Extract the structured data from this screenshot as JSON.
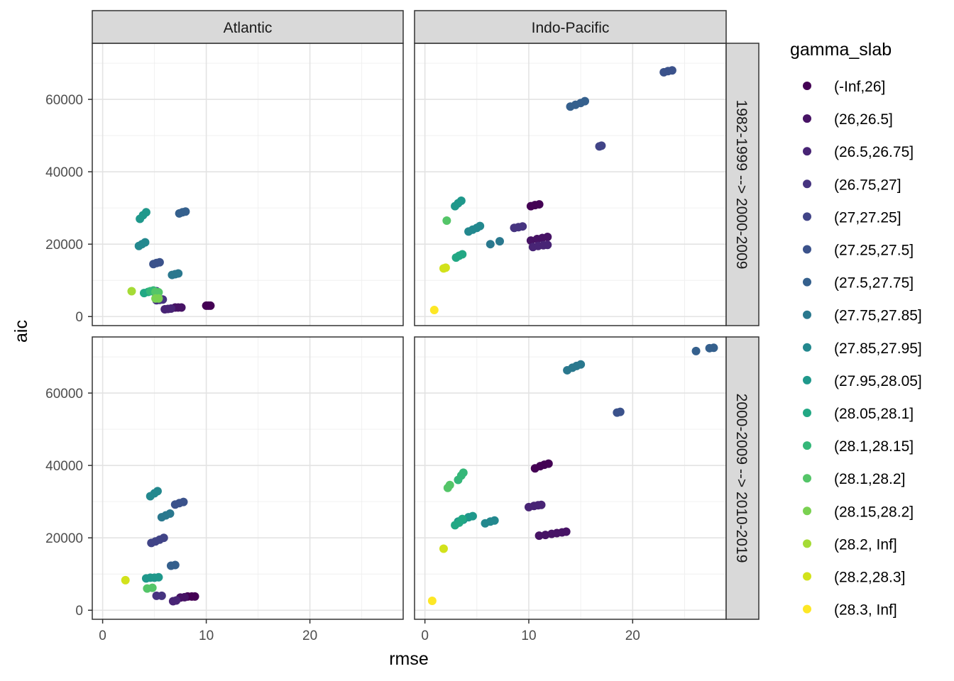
{
  "chart_data": {
    "type": "scatter",
    "xlabel": "rmse",
    "ylabel": "aic",
    "xlim": [
      -1,
      29
    ],
    "ylim": [
      -2500,
      75500
    ],
    "x_ticks": [
      0,
      10,
      20
    ],
    "y_ticks": [
      0,
      20000,
      40000,
      60000
    ],
    "grid": true,
    "legend_position": "right",
    "legend_title": "gamma_slab",
    "columns": [
      "Atlantic",
      "Indo-Pacific"
    ],
    "rows": [
      "1982-1999 --> 2000-2009",
      "2000-2009 --> 2010-2019"
    ],
    "series": [
      {
        "name": "(-Inf,26]",
        "color": "#440154"
      },
      {
        "name": "(26,26.5]",
        "color": "#471365"
      },
      {
        "name": "(26.5,26.75]",
        "color": "#482475"
      },
      {
        "name": "(26.75,27]",
        "color": "#463480"
      },
      {
        "name": "(27,27.25]",
        "color": "#414487"
      },
      {
        "name": "(27.25,27.5]",
        "color": "#3B528B"
      },
      {
        "name": "(27.5,27.75]",
        "color": "#35608D"
      },
      {
        "name": "(27.75,27.85]",
        "color": "#2A788E"
      },
      {
        "name": "(27.85,27.95]",
        "color": "#23888E"
      },
      {
        "name": "(27.95,28.05]",
        "color": "#1F988B"
      },
      {
        "name": "(28.05,28.1]",
        "color": "#22A884"
      },
      {
        "name": "(28.1,28.15]",
        "color": "#35B779"
      },
      {
        "name": "(28.1,28.2]",
        "color": "#54C568"
      },
      {
        "name": "(28.15,28.2]",
        "color": "#7AD151"
      },
      {
        "name": "(28.2, Inf]",
        "color": "#A5DB36"
      },
      {
        "name": "(28.2,28.3]",
        "color": "#D2E21B"
      },
      {
        "name": "(28.3, Inf]",
        "color": "#FDE725"
      }
    ],
    "panels": [
      {
        "column": 0,
        "row": 0,
        "points": [
          [
            0,
            10.0,
            3000
          ],
          [
            0,
            10.2,
            3000
          ],
          [
            0,
            10.4,
            3000
          ],
          [
            1,
            7.0,
            2500
          ],
          [
            1,
            7.3,
            2500
          ],
          [
            1,
            7.6,
            2500
          ],
          [
            2,
            6.0,
            2000
          ],
          [
            2,
            6.3,
            2100
          ],
          [
            2,
            6.6,
            2200
          ],
          [
            3,
            5.2,
            4500
          ],
          [
            3,
            5.5,
            4600
          ],
          [
            3,
            5.8,
            4700
          ],
          [
            4,
            5.0,
            6800
          ],
          [
            4,
            5.2,
            7000
          ],
          [
            5,
            4.9,
            14500
          ],
          [
            5,
            5.2,
            14800
          ],
          [
            5,
            5.5,
            15000
          ],
          [
            6,
            7.4,
            28500
          ],
          [
            6,
            7.7,
            28800
          ],
          [
            6,
            8.0,
            29000
          ],
          [
            7,
            6.7,
            11500
          ],
          [
            7,
            7.0,
            11700
          ],
          [
            7,
            7.3,
            11900
          ],
          [
            8,
            3.5,
            19500
          ],
          [
            8,
            3.8,
            20000
          ],
          [
            8,
            4.1,
            20500
          ],
          [
            9,
            3.6,
            27000
          ],
          [
            9,
            3.9,
            28000
          ],
          [
            9,
            4.2,
            28800
          ],
          [
            10,
            4.0,
            6500
          ],
          [
            10,
            4.4,
            6800
          ],
          [
            11,
            4.6,
            7000
          ],
          [
            11,
            4.9,
            7200
          ],
          [
            12,
            5.1,
            6800
          ],
          [
            12,
            5.4,
            6700
          ],
          [
            13,
            5.1,
            5000
          ],
          [
            13,
            5.4,
            5000
          ],
          [
            14,
            2.8,
            7000
          ]
        ]
      },
      {
        "column": 1,
        "row": 0,
        "points": [
          [
            0,
            10.2,
            30500
          ],
          [
            0,
            10.6,
            30800
          ],
          [
            0,
            11.0,
            31000
          ],
          [
            1,
            10.2,
            21000
          ],
          [
            1,
            10.8,
            21400
          ],
          [
            1,
            11.3,
            21700
          ],
          [
            1,
            11.8,
            22000
          ],
          [
            2,
            10.4,
            19200
          ],
          [
            2,
            10.9,
            19500
          ],
          [
            2,
            11.4,
            19700
          ],
          [
            2,
            11.8,
            19800
          ],
          [
            3,
            8.6,
            24500
          ],
          [
            3,
            9.0,
            24700
          ],
          [
            3,
            9.4,
            24900
          ],
          [
            4,
            16.8,
            47000
          ],
          [
            4,
            17.0,
            47200
          ],
          [
            5,
            23.0,
            67500
          ],
          [
            5,
            23.4,
            67800
          ],
          [
            5,
            23.8,
            68000
          ],
          [
            6,
            14.0,
            58000
          ],
          [
            6,
            14.5,
            58500
          ],
          [
            6,
            15.0,
            59000
          ],
          [
            6,
            15.4,
            59500
          ],
          [
            7,
            6.3,
            20000
          ],
          [
            7,
            7.2,
            20800
          ],
          [
            8,
            4.2,
            23500
          ],
          [
            8,
            4.6,
            24000
          ],
          [
            8,
            5.0,
            24500
          ],
          [
            8,
            5.3,
            25000
          ],
          [
            9,
            2.9,
            30500
          ],
          [
            9,
            3.2,
            31300
          ],
          [
            9,
            3.5,
            32000
          ],
          [
            10,
            3.0,
            16300
          ],
          [
            10,
            3.3,
            16800
          ],
          [
            10,
            3.6,
            17200
          ],
          [
            12,
            2.1,
            26500
          ],
          [
            15,
            1.8,
            13300
          ],
          [
            15,
            2.0,
            13500
          ],
          [
            16,
            0.9,
            1800
          ]
        ]
      },
      {
        "column": 0,
        "row": 1,
        "points": [
          [
            0,
            8.2,
            3800
          ],
          [
            0,
            8.6,
            3800
          ],
          [
            0,
            8.9,
            3800
          ],
          [
            1,
            7.5,
            3500
          ],
          [
            1,
            7.9,
            3600
          ],
          [
            2,
            6.8,
            2500
          ],
          [
            2,
            7.1,
            2700
          ],
          [
            3,
            5.2,
            4000
          ],
          [
            3,
            5.7,
            4000
          ],
          [
            4,
            4.7,
            18600
          ],
          [
            4,
            5.1,
            19000
          ],
          [
            4,
            5.5,
            19500
          ],
          [
            4,
            5.9,
            20000
          ],
          [
            5,
            7.0,
            29200
          ],
          [
            5,
            7.4,
            29600
          ],
          [
            5,
            7.8,
            29900
          ],
          [
            6,
            6.6,
            12300
          ],
          [
            6,
            7.0,
            12500
          ],
          [
            7,
            5.7,
            25700
          ],
          [
            7,
            6.1,
            26200
          ],
          [
            7,
            6.5,
            26700
          ],
          [
            8,
            4.6,
            31500
          ],
          [
            8,
            5.0,
            32300
          ],
          [
            8,
            5.3,
            32900
          ],
          [
            9,
            4.2,
            8800
          ],
          [
            9,
            4.6,
            9000
          ],
          [
            9,
            5.0,
            9000
          ],
          [
            9,
            5.4,
            9100
          ],
          [
            12,
            4.3,
            6000
          ],
          [
            12,
            4.8,
            6200
          ],
          [
            15,
            2.2,
            8300
          ]
        ]
      },
      {
        "column": 1,
        "row": 1,
        "points": [
          [
            0,
            10.6,
            39200
          ],
          [
            0,
            11.1,
            39800
          ],
          [
            0,
            11.5,
            40200
          ],
          [
            0,
            11.9,
            40500
          ],
          [
            1,
            11.0,
            20600
          ],
          [
            1,
            11.6,
            20800
          ],
          [
            1,
            12.2,
            21100
          ],
          [
            1,
            12.7,
            21300
          ],
          [
            1,
            13.2,
            21500
          ],
          [
            1,
            13.6,
            21700
          ],
          [
            2,
            10.0,
            28500
          ],
          [
            2,
            10.5,
            28800
          ],
          [
            2,
            10.9,
            29000
          ],
          [
            2,
            11.2,
            29100
          ],
          [
            5,
            18.5,
            54600
          ],
          [
            5,
            18.8,
            54800
          ],
          [
            6,
            26.1,
            71600
          ],
          [
            6,
            27.4,
            72400
          ],
          [
            6,
            27.8,
            72500
          ],
          [
            7,
            13.7,
            66300
          ],
          [
            7,
            14.2,
            67000
          ],
          [
            7,
            14.6,
            67500
          ],
          [
            7,
            15.0,
            67900
          ],
          [
            8,
            5.8,
            24000
          ],
          [
            8,
            6.3,
            24500
          ],
          [
            8,
            6.7,
            24800
          ],
          [
            9,
            3.2,
            24500
          ],
          [
            9,
            3.7,
            25000
          ],
          [
            9,
            4.2,
            25700
          ],
          [
            9,
            4.6,
            26000
          ],
          [
            10,
            2.9,
            23500
          ],
          [
            10,
            3.3,
            24200
          ],
          [
            10,
            3.6,
            25200
          ],
          [
            11,
            3.2,
            36000
          ],
          [
            11,
            3.5,
            37200
          ],
          [
            11,
            3.7,
            38000
          ],
          [
            12,
            2.2,
            33800
          ],
          [
            12,
            2.4,
            34600
          ],
          [
            15,
            1.8,
            17000
          ],
          [
            16,
            0.7,
            2600
          ]
        ]
      }
    ]
  }
}
